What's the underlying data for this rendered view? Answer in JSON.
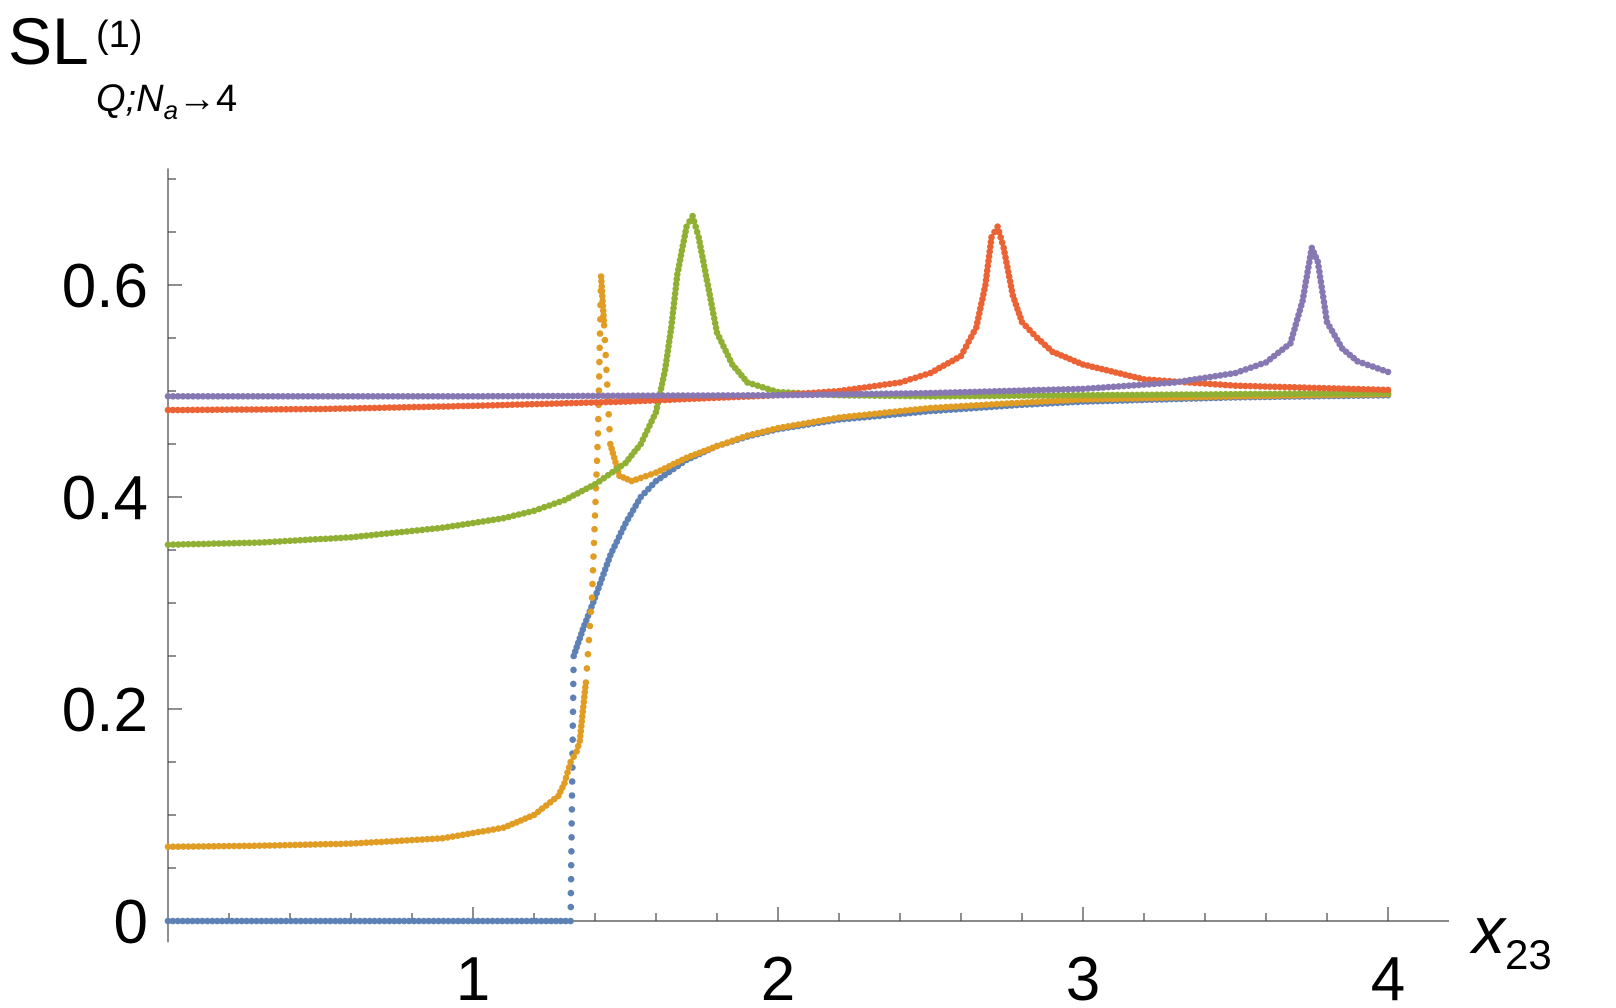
{
  "chart_data": {
    "type": "scatter",
    "ylabel": {
      "base": "SL",
      "superscript": "(1)",
      "subscript_q": "Q;",
      "subscript_n": "N",
      "subscript_a": "a",
      "subscript_arrow": "→4"
    },
    "xlabel": {
      "base": "x",
      "subscript": "23"
    },
    "xlim": [
      0,
      4.2
    ],
    "ylim": [
      -0.02,
      0.71
    ],
    "x_ticks": [
      1,
      2,
      3,
      4
    ],
    "x_tick_labels": [
      "1",
      "2",
      "3",
      "4"
    ],
    "y_ticks": [
      0,
      0.2,
      0.4,
      0.6
    ],
    "y_tick_labels": [
      "0",
      "0.2",
      "0.4",
      "0.6"
    ],
    "grid": false,
    "legend": "none",
    "series": [
      {
        "color": "#5e81b5",
        "points": [
          [
            0,
            0
          ],
          [
            0.5,
            0
          ],
          [
            1.0,
            0
          ],
          [
            1.32,
            0
          ],
          [
            1.33,
            0.25
          ],
          [
            1.36,
            0.275
          ],
          [
            1.4,
            0.305
          ],
          [
            1.45,
            0.345
          ],
          [
            1.5,
            0.375
          ],
          [
            1.55,
            0.4
          ],
          [
            1.6,
            0.415
          ],
          [
            1.7,
            0.435
          ],
          [
            1.8,
            0.448
          ],
          [
            1.9,
            0.457
          ],
          [
            2.0,
            0.464
          ],
          [
            2.2,
            0.473
          ],
          [
            2.5,
            0.481
          ],
          [
            2.8,
            0.487
          ],
          [
            3.0,
            0.49
          ],
          [
            3.5,
            0.494
          ],
          [
            4.0,
            0.496
          ]
        ]
      },
      {
        "color": "#e19c24",
        "points": [
          [
            0,
            0.07
          ],
          [
            0.3,
            0.071
          ],
          [
            0.6,
            0.073
          ],
          [
            0.9,
            0.078
          ],
          [
            1.1,
            0.088
          ],
          [
            1.2,
            0.1
          ],
          [
            1.28,
            0.118
          ],
          [
            1.3,
            0.13
          ],
          [
            1.32,
            0.15
          ],
          [
            1.34,
            0.16
          ],
          [
            1.35,
            0.17
          ],
          [
            1.37,
            0.225
          ],
          [
            1.39,
            0.305
          ],
          [
            1.41,
            0.46
          ],
          [
            1.42,
            0.608
          ],
          [
            1.43,
            0.562
          ],
          [
            1.45,
            0.45
          ],
          [
            1.48,
            0.42
          ],
          [
            1.52,
            0.415
          ],
          [
            1.55,
            0.418
          ],
          [
            1.6,
            0.423
          ],
          [
            1.7,
            0.437
          ],
          [
            1.8,
            0.448
          ],
          [
            1.9,
            0.458
          ],
          [
            2.0,
            0.465
          ],
          [
            2.2,
            0.475
          ],
          [
            2.5,
            0.484
          ],
          [
            2.8,
            0.489
          ],
          [
            3.0,
            0.492
          ],
          [
            3.5,
            0.495
          ],
          [
            4.0,
            0.497
          ]
        ]
      },
      {
        "color": "#8fb032",
        "points": [
          [
            0,
            0.355
          ],
          [
            0.3,
            0.357
          ],
          [
            0.6,
            0.362
          ],
          [
            0.9,
            0.371
          ],
          [
            1.1,
            0.38
          ],
          [
            1.2,
            0.387
          ],
          [
            1.3,
            0.397
          ],
          [
            1.4,
            0.412
          ],
          [
            1.5,
            0.432
          ],
          [
            1.55,
            0.45
          ],
          [
            1.6,
            0.48
          ],
          [
            1.63,
            0.52
          ],
          [
            1.65,
            0.56
          ],
          [
            1.67,
            0.61
          ],
          [
            1.7,
            0.655
          ],
          [
            1.72,
            0.665
          ],
          [
            1.74,
            0.645
          ],
          [
            1.77,
            0.6
          ],
          [
            1.8,
            0.555
          ],
          [
            1.85,
            0.525
          ],
          [
            1.9,
            0.508
          ],
          [
            2.0,
            0.499
          ],
          [
            2.2,
            0.496
          ],
          [
            2.5,
            0.495
          ],
          [
            3.0,
            0.496
          ],
          [
            3.5,
            0.497
          ],
          [
            4.0,
            0.498
          ]
        ]
      },
      {
        "color": "#eb6235",
        "points": [
          [
            0,
            0.482
          ],
          [
            0.5,
            0.483
          ],
          [
            1.0,
            0.486
          ],
          [
            1.5,
            0.49
          ],
          [
            2.0,
            0.496
          ],
          [
            2.2,
            0.5
          ],
          [
            2.4,
            0.508
          ],
          [
            2.5,
            0.517
          ],
          [
            2.6,
            0.533
          ],
          [
            2.65,
            0.56
          ],
          [
            2.68,
            0.6
          ],
          [
            2.7,
            0.645
          ],
          [
            2.72,
            0.655
          ],
          [
            2.74,
            0.635
          ],
          [
            2.77,
            0.59
          ],
          [
            2.8,
            0.565
          ],
          [
            2.85,
            0.55
          ],
          [
            2.9,
            0.537
          ],
          [
            3.0,
            0.525
          ],
          [
            3.2,
            0.511
          ],
          [
            3.5,
            0.505
          ],
          [
            4.0,
            0.501
          ]
        ]
      },
      {
        "color": "#8778b3",
        "points": [
          [
            0,
            0.495
          ],
          [
            1.0,
            0.495
          ],
          [
            2.0,
            0.496
          ],
          [
            2.5,
            0.498
          ],
          [
            3.0,
            0.502
          ],
          [
            3.3,
            0.508
          ],
          [
            3.5,
            0.517
          ],
          [
            3.6,
            0.527
          ],
          [
            3.68,
            0.545
          ],
          [
            3.72,
            0.585
          ],
          [
            3.75,
            0.635
          ],
          [
            3.77,
            0.622
          ],
          [
            3.8,
            0.565
          ],
          [
            3.85,
            0.54
          ],
          [
            3.9,
            0.528
          ],
          [
            4.0,
            0.518
          ]
        ]
      }
    ]
  }
}
